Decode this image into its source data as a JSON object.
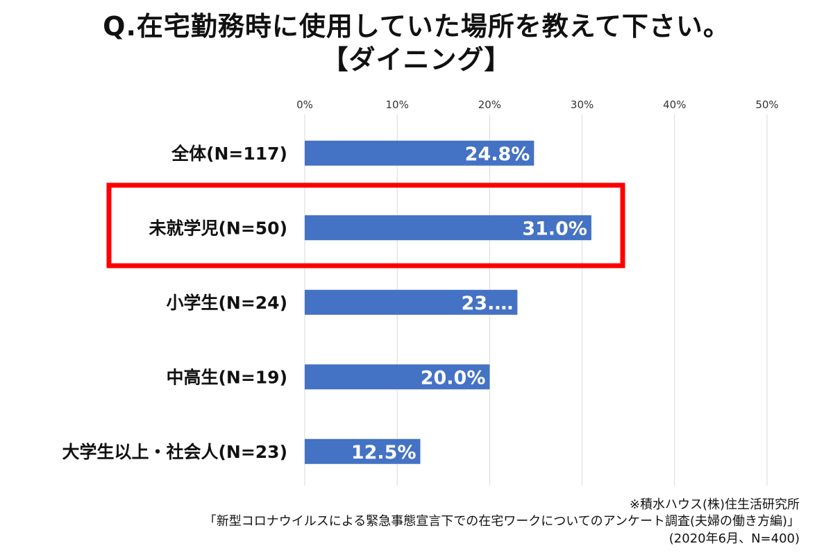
{
  "title": {
    "line1": "Q.在宅勤務時に使用していた場所を教えて下さい。",
    "line2": "【ダイニング】"
  },
  "chart_data": {
    "type": "bar",
    "orientation": "horizontal",
    "categories": [
      "全体(N=117)",
      "未就学児(N=50)",
      "小学生(N=24)",
      "中高生(N=19)",
      "大学生以上・社会人(N=23)"
    ],
    "values": [
      24.8,
      31.0,
      23.0,
      20.0,
      12.5
    ],
    "data_labels": [
      "24.8%",
      "31.0%",
      "23.…",
      "20.0%",
      "12.5%"
    ],
    "x_ticks": [
      "0%",
      "10%",
      "20%",
      "30%",
      "40%",
      "50%"
    ],
    "xlim": [
      0,
      50
    ],
    "grid": true,
    "bar_color": "#4472C4",
    "highlight_index": 1,
    "highlight_color": "#FF0000"
  },
  "source": {
    "line1": "※積水ハウス(株)住生活研究所",
    "line2": "「新型コロナウイルスによる緊急事態宣言下での在宅ワークについてのアンケート調査(夫婦の働き方編)」",
    "line3": "(2020年6月、N=400)"
  }
}
